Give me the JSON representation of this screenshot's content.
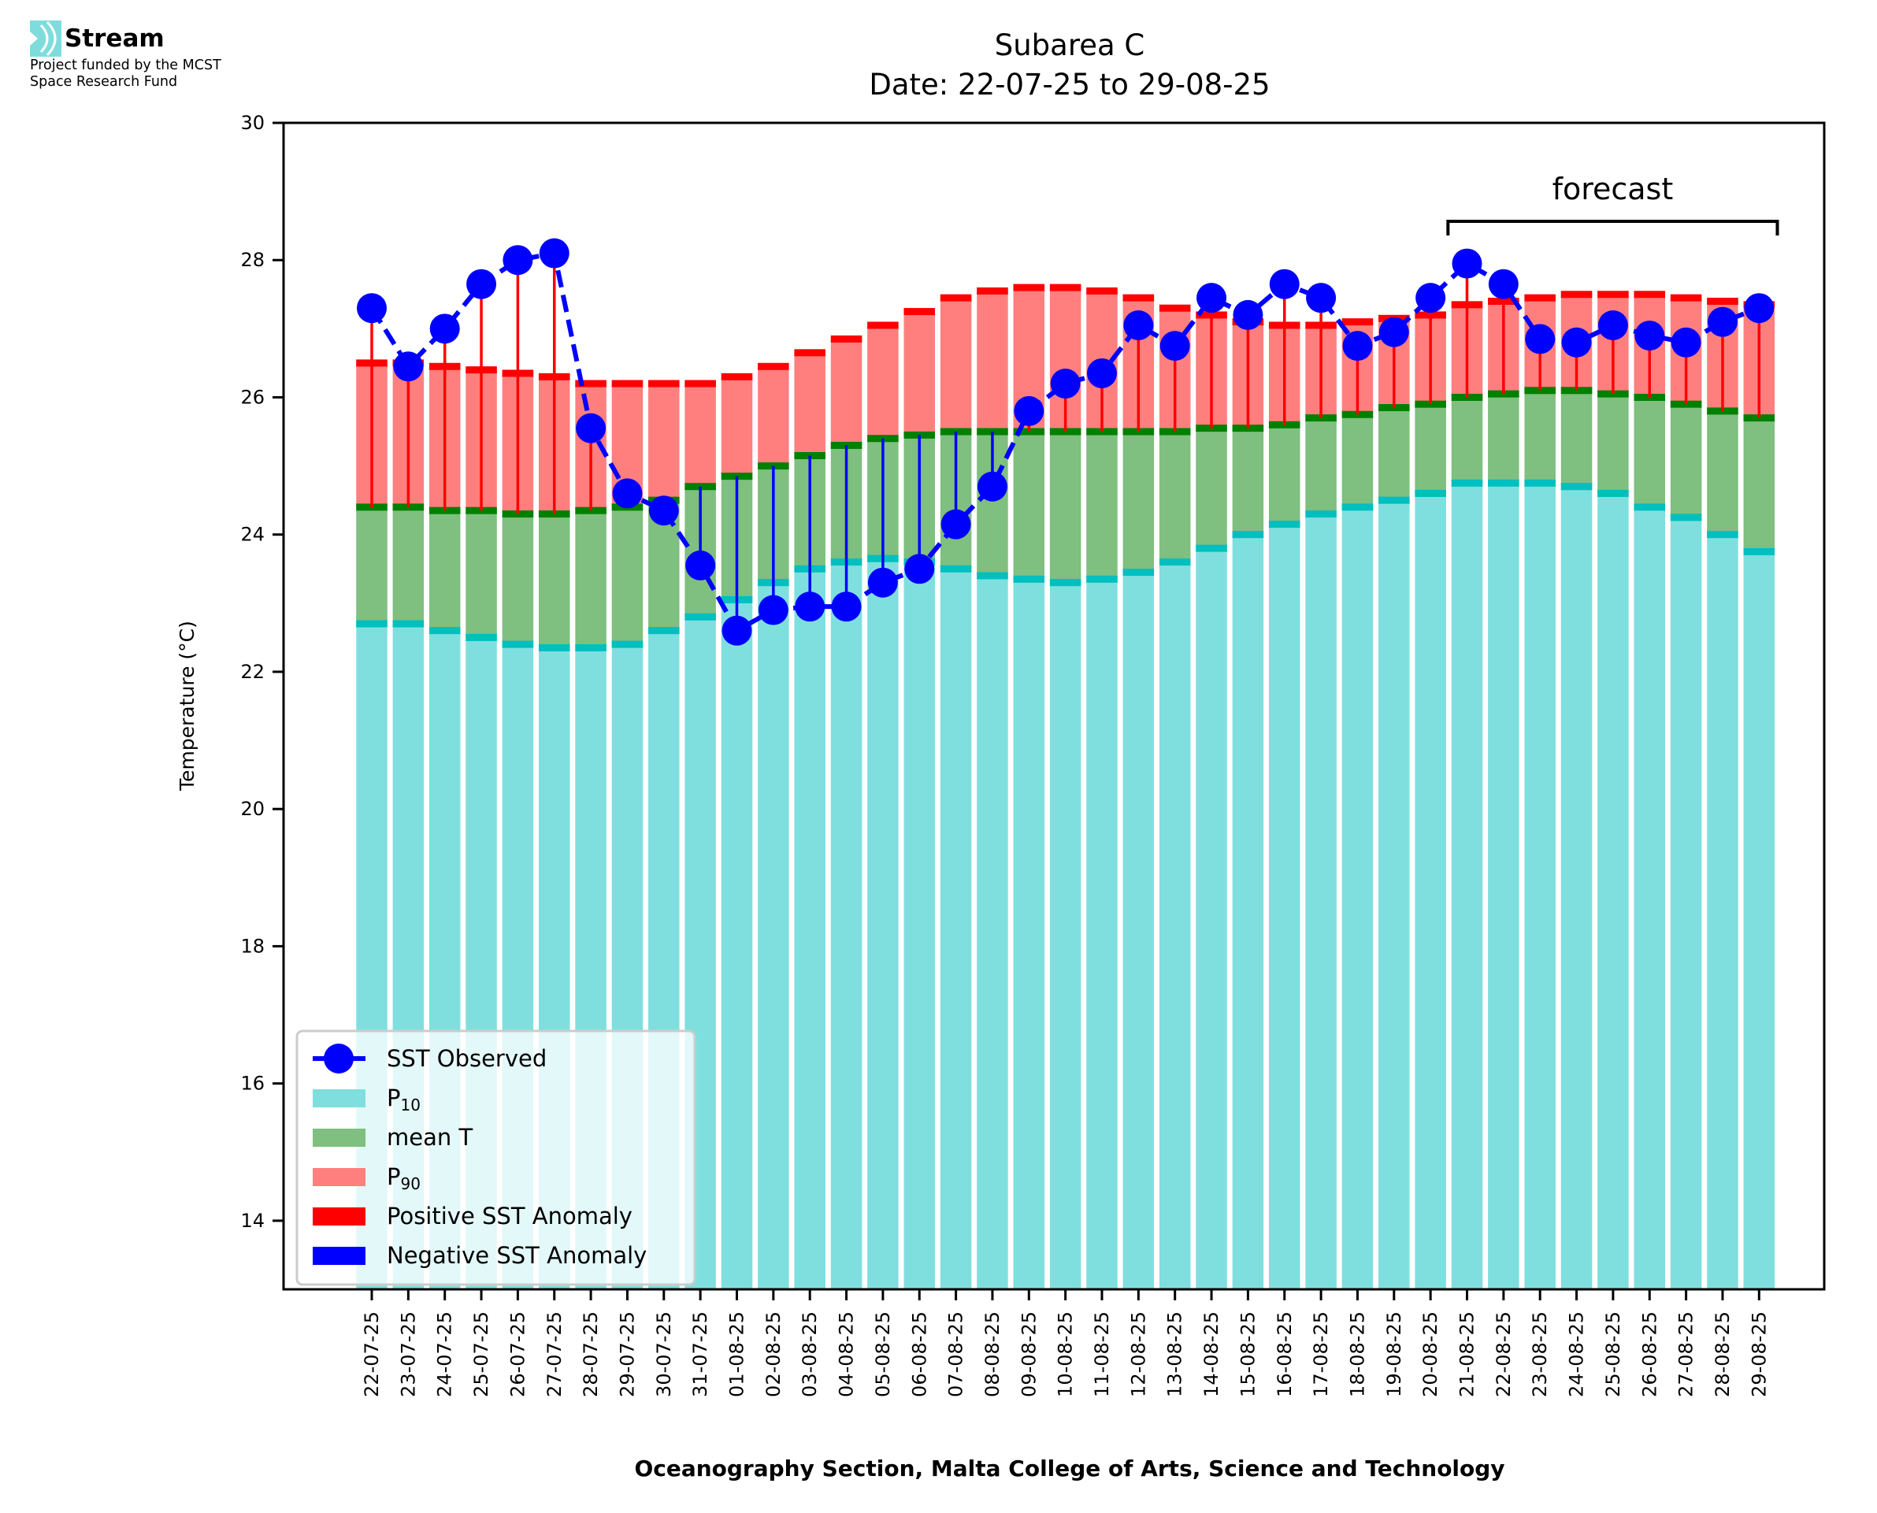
{
  "logo": {
    "name": "Stream",
    "funding_line1": "Project funded by the MCST",
    "funding_line2": "Space Research Fund",
    "icon": "stream-waves-icon",
    "color": "#7fdcdc"
  },
  "chart_data": {
    "type": "bar",
    "subtype": "stacked bar with observed line and anomaly stems",
    "title": "Subarea C",
    "subtitle": "Date: 22-07-25 to 29-08-25",
    "xlabel": "Oceanography Section, Malta College of Arts, Science and Technology",
    "ylabel": "Temperature (°C)",
    "ylim": [
      13.0,
      30.0
    ],
    "yticks": [
      14,
      16,
      18,
      20,
      22,
      24,
      26,
      28,
      30
    ],
    "grid": false,
    "legend_position": "lower-left",
    "annotation": {
      "text": "forecast",
      "from": "21-08-25",
      "to": "29-08-25"
    },
    "categories": [
      "22-07-25",
      "23-07-25",
      "24-07-25",
      "25-07-25",
      "26-07-25",
      "27-07-25",
      "28-07-25",
      "29-07-25",
      "30-07-25",
      "31-07-25",
      "01-08-25",
      "02-08-25",
      "03-08-25",
      "04-08-25",
      "05-08-25",
      "06-08-25",
      "07-08-25",
      "08-08-25",
      "09-08-25",
      "10-08-25",
      "11-08-25",
      "12-08-25",
      "13-08-25",
      "14-08-25",
      "15-08-25",
      "16-08-25",
      "17-08-25",
      "18-08-25",
      "19-08-25",
      "20-08-25",
      "21-08-25",
      "22-08-25",
      "23-08-25",
      "24-08-25",
      "25-08-25",
      "26-08-25",
      "27-08-25",
      "28-08-25",
      "29-08-25"
    ],
    "series": [
      {
        "name": "P10",
        "label_main": "P",
        "label_sub": "10",
        "color": "#7fdfdf",
        "edge_color": "#00bfbf",
        "values": [
          22.7,
          22.7,
          22.6,
          22.5,
          22.4,
          22.35,
          22.35,
          22.4,
          22.6,
          22.8,
          23.05,
          23.3,
          23.5,
          23.6,
          23.65,
          23.6,
          23.5,
          23.4,
          23.35,
          23.3,
          23.35,
          23.45,
          23.6,
          23.8,
          24.0,
          24.15,
          24.3,
          24.4,
          24.5,
          24.6,
          24.75,
          24.75,
          24.75,
          24.7,
          24.6,
          24.4,
          24.25,
          24.0,
          23.75
        ]
      },
      {
        "name": "mean T",
        "label_main": "mean T",
        "label_sub": "",
        "color": "#7fbf7f",
        "edge_color": "#008000",
        "values": [
          24.4,
          24.4,
          24.35,
          24.35,
          24.3,
          24.3,
          24.35,
          24.4,
          24.5,
          24.7,
          24.85,
          25.0,
          25.15,
          25.3,
          25.4,
          25.45,
          25.5,
          25.5,
          25.5,
          25.5,
          25.5,
          25.5,
          25.5,
          25.55,
          25.55,
          25.6,
          25.7,
          25.75,
          25.85,
          25.9,
          26.0,
          26.05,
          26.1,
          26.1,
          26.05,
          26.0,
          25.9,
          25.8,
          25.7
        ]
      },
      {
        "name": "P90",
        "label_main": "P",
        "label_sub": "90",
        "color": "#ff7f7f",
        "edge_color": "#ff0000",
        "values": [
          26.5,
          26.5,
          26.45,
          26.4,
          26.35,
          26.3,
          26.2,
          26.2,
          26.2,
          26.2,
          26.3,
          26.45,
          26.65,
          26.85,
          27.05,
          27.25,
          27.45,
          27.55,
          27.6,
          27.6,
          27.55,
          27.45,
          27.3,
          27.2,
          27.1,
          27.05,
          27.05,
          27.1,
          27.15,
          27.2,
          27.35,
          27.4,
          27.45,
          27.5,
          27.5,
          27.5,
          27.45,
          27.4,
          27.35
        ]
      },
      {
        "name": "SST Observed",
        "color": "#0000ff",
        "style": "dashed line with circle markers",
        "values": [
          27.3,
          26.45,
          27.0,
          27.65,
          28.0,
          28.1,
          25.55,
          24.6,
          24.35,
          23.55,
          22.6,
          22.9,
          22.95,
          22.95,
          23.3,
          23.5,
          24.15,
          24.7,
          25.8,
          26.2,
          26.35,
          27.05,
          26.75,
          27.45,
          27.2,
          27.65,
          27.45,
          26.75,
          26.95,
          27.45,
          27.95,
          27.65,
          26.85,
          26.8,
          27.05,
          26.9,
          26.8,
          27.1,
          27.3
        ]
      }
    ],
    "anomaly_rule": "stem drawn from mean T to SST Observed; red when SST > mean (positive), blue when SST < mean (negative)",
    "legend": [
      {
        "label": "SST Observed",
        "sub": "",
        "kind": "line-marker",
        "color": "#0000ff"
      },
      {
        "label": "P",
        "sub": "10",
        "kind": "patch",
        "color": "#7fdfdf"
      },
      {
        "label": "mean T",
        "sub": "",
        "kind": "patch",
        "color": "#7fbf7f"
      },
      {
        "label": "P",
        "sub": "90",
        "kind": "patch",
        "color": "#ff7f7f"
      },
      {
        "label": "Positive SST Anomaly",
        "sub": "",
        "kind": "patch",
        "color": "#ff0000"
      },
      {
        "label": "Negative SST Anomaly",
        "sub": "",
        "kind": "patch",
        "color": "#0000ff"
      }
    ]
  }
}
